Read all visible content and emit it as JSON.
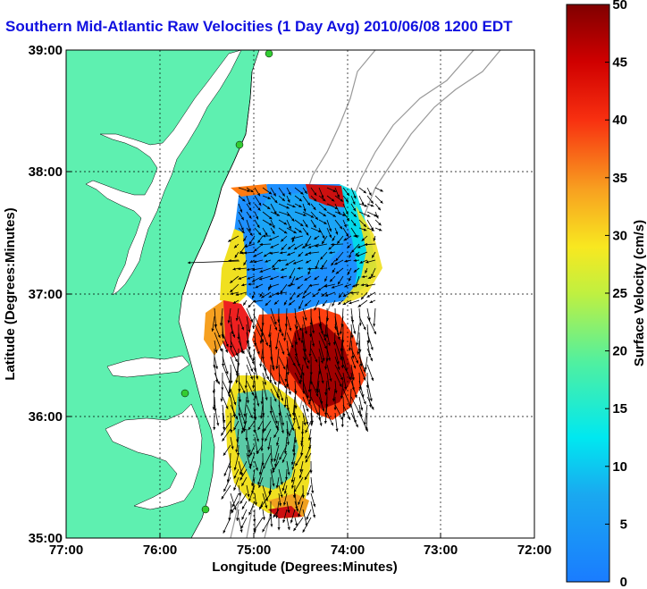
{
  "title": "Southern Mid-Atlantic Raw Velocities (1 Day Avg) 2010/06/08 1200 EDT",
  "xaxis": {
    "label": "Longitude (Degrees:Minutes)",
    "ticks": [
      "77:00",
      "76:00",
      "75:00",
      "74:00",
      "73:00",
      "72:00"
    ]
  },
  "yaxis": {
    "label": "Latitude (Degrees:Minutes)",
    "ticks": [
      "39:00",
      "38:00",
      "37:00",
      "36:00",
      "35:00"
    ]
  },
  "colorbar": {
    "label": "Surface Velocity (cm/s)",
    "ticks": [
      "50",
      "45",
      "40",
      "35",
      "30",
      "25",
      "20",
      "15",
      "10",
      "5",
      "0"
    ],
    "min": 0,
    "max": 50
  },
  "colors": {
    "land": "#5ef0b0",
    "title": "#1010e0",
    "station": "#33cc33",
    "bathymetry": "#999999"
  }
}
